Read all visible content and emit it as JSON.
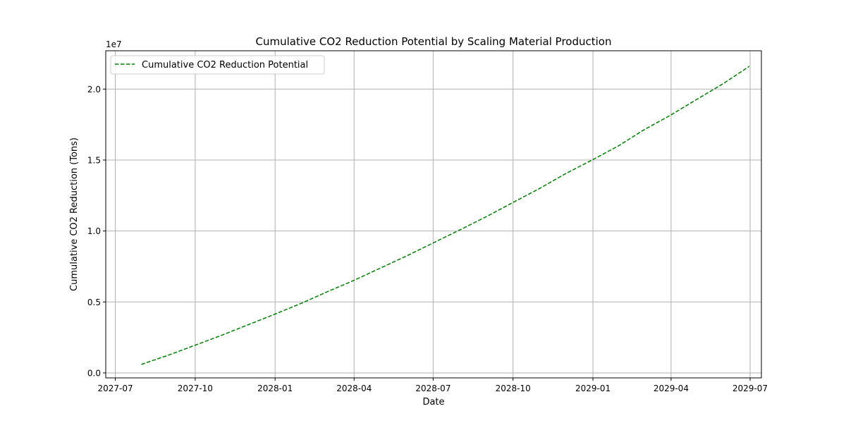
{
  "chart_data": {
    "type": "line",
    "title": "Cumulative CO2 Reduction Potential by Scaling Material Production",
    "xlabel": "Date",
    "ylabel": "Cumulative CO2 Reduction (Tons)",
    "y_offset_label": "1e7",
    "x_tick_labels": [
      "2027-07",
      "2027-10",
      "2028-01",
      "2028-04",
      "2028-07",
      "2028-10",
      "2029-01",
      "2029-04",
      "2029-07"
    ],
    "y_tick_labels": [
      "0.0",
      "0.5",
      "1.0",
      "1.5",
      "2.0"
    ],
    "x_ticks": [
      "2027-07-01",
      "2027-10-01",
      "2028-01-01",
      "2028-04-01",
      "2028-07-01",
      "2028-10-01",
      "2029-01-01",
      "2029-04-01",
      "2029-07-01"
    ],
    "y_ticks": [
      0,
      5000000,
      10000000,
      15000000,
      20000000
    ],
    "xlim": [
      "2027-06-20",
      "2029-07-14"
    ],
    "ylim": [
      -350000,
      22700000
    ],
    "grid": true,
    "legend_position": "top-left",
    "series": [
      {
        "name": "Cumulative CO2 Reduction Potential",
        "color": "#008000",
        "line_style": "dashed",
        "points": [
          {
            "x": "2027-07-31",
            "y": 600000
          },
          {
            "x": "2027-08-31",
            "y": 1250000
          },
          {
            "x": "2027-09-30",
            "y": 1930000
          },
          {
            "x": "2027-10-31",
            "y": 2640000
          },
          {
            "x": "2027-11-30",
            "y": 3370000
          },
          {
            "x": "2027-12-31",
            "y": 4120000
          },
          {
            "x": "2028-01-31",
            "y": 4900000
          },
          {
            "x": "2028-02-29",
            "y": 5690000
          },
          {
            "x": "2028-03-31",
            "y": 6500000
          },
          {
            "x": "2028-04-30",
            "y": 7350000
          },
          {
            "x": "2028-05-31",
            "y": 8230000
          },
          {
            "x": "2028-06-30",
            "y": 9130000
          },
          {
            "x": "2028-07-31",
            "y": 10050000
          },
          {
            "x": "2028-08-31",
            "y": 11000000
          },
          {
            "x": "2028-09-30",
            "y": 11980000
          },
          {
            "x": "2028-10-31",
            "y": 12980000
          },
          {
            "x": "2028-11-30",
            "y": 14020000
          },
          {
            "x": "2028-12-31",
            "y": 15000000
          },
          {
            "x": "2029-01-31",
            "y": 16020000
          },
          {
            "x": "2029-02-28",
            "y": 17100000
          },
          {
            "x": "2029-03-31",
            "y": 18150000
          },
          {
            "x": "2029-04-30",
            "y": 19250000
          },
          {
            "x": "2029-05-31",
            "y": 20380000
          },
          {
            "x": "2029-06-30",
            "y": 21600000
          }
        ]
      }
    ]
  }
}
